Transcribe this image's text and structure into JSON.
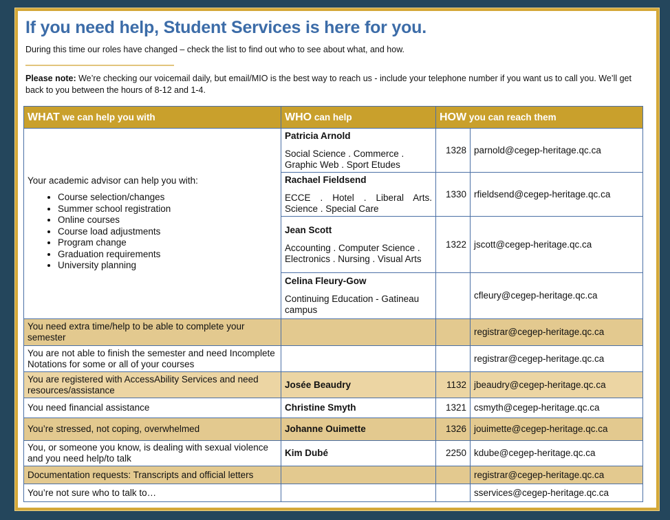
{
  "title": "If you need help, Student Services is here for you.",
  "subtitle": "During this time our roles have changed – check the list to find out who to see about what, and how.",
  "note": {
    "label": "Please note:",
    "text": " We’re checking our voicemail daily, but email/MIO is the best way to reach us - include your telephone number if you want us to call you. We’ll get back to you between the hours of 8-12 and 1-4."
  },
  "headers": {
    "what_big": "WHAT",
    "what": " we can help you with",
    "who_big": "WHO",
    "who": " can help",
    "how_big": "HOW",
    "how": " you can reach them"
  },
  "advisor": {
    "intro": "Your academic advisor can help you with:",
    "items": [
      "Course selection/changes",
      "Summer school registration",
      "Online courses",
      "Course load adjustments",
      "Program change",
      "Graduation requirements",
      "University planning"
    ],
    "contacts": [
      {
        "name": "Patricia Arnold",
        "programs": "Social Science . Commerce . Graphic Web . Sport Etudes",
        "ext": "1328",
        "email": "parnold@cegep-heritage.qc.ca"
      },
      {
        "name": "Rachael Fieldsend",
        "programs": "ECCE . Hotel . Liberal Arts. Science . Special Care",
        "ext": "1330",
        "email": "rfieldsend@cegep-heritage.qc.ca"
      },
      {
        "name": "Jean Scott",
        "programs": "Accounting . Computer Science . Electronics . Nursing . Visual Arts",
        "ext": "1322",
        "email": "jscott@cegep-heritage.qc.ca"
      },
      {
        "name": "Celina Fleury-Gow",
        "programs": "Continuing Education - Gatineau campus",
        "ext": "",
        "email": "cfleury@cegep-heritage.qc.ca"
      }
    ]
  },
  "rows": [
    {
      "what": "You need extra time/help to be able to complete your semester",
      "who": "",
      "ext": "",
      "email": "registrar@cegep-heritage.qc.ca"
    },
    {
      "what": "You are not able to finish the semester and need Incomplete Notations for some or all of your courses",
      "who": "",
      "ext": "",
      "email": "registrar@cegep-heritage.qc.ca"
    },
    {
      "what": "You are registered with AccessAbility Services and need resources/assistance",
      "who": "Josée Beaudry",
      "ext": "1132",
      "email": "jbeaudry@cegep-heritage.qc.ca"
    },
    {
      "what": "You need financial assistance",
      "who": "Christine Smyth",
      "ext": "1321",
      "email": "csmyth@cegep-heritage.qc.ca"
    },
    {
      "what": "You’re stressed, not coping, overwhelmed",
      "who": "Johanne Ouimette",
      "ext": "1326",
      "email": "jouimette@cegep-heritage.qc.ca"
    },
    {
      "what": "You, or someone you know, is dealing with sexual violence and you need help/to talk",
      "who": "Kim Dubé",
      "ext": "2250",
      "email": "kdube@cegep-heritage.qc.ca"
    },
    {
      "what": "Documentation requests: Transcripts and official letters",
      "who": "",
      "ext": "",
      "email": "registrar@cegep-heritage.qc.ca"
    },
    {
      "what": "You’re not sure who to talk to…",
      "who": "",
      "ext": "",
      "email": "sservices@cegep-heritage.qc.ca"
    }
  ],
  "colors": {
    "background": "#24465c",
    "frame": "#d4a838",
    "header": "#c9a02c",
    "row_tint": "#e3c98f",
    "title": "#3c6ca8"
  }
}
